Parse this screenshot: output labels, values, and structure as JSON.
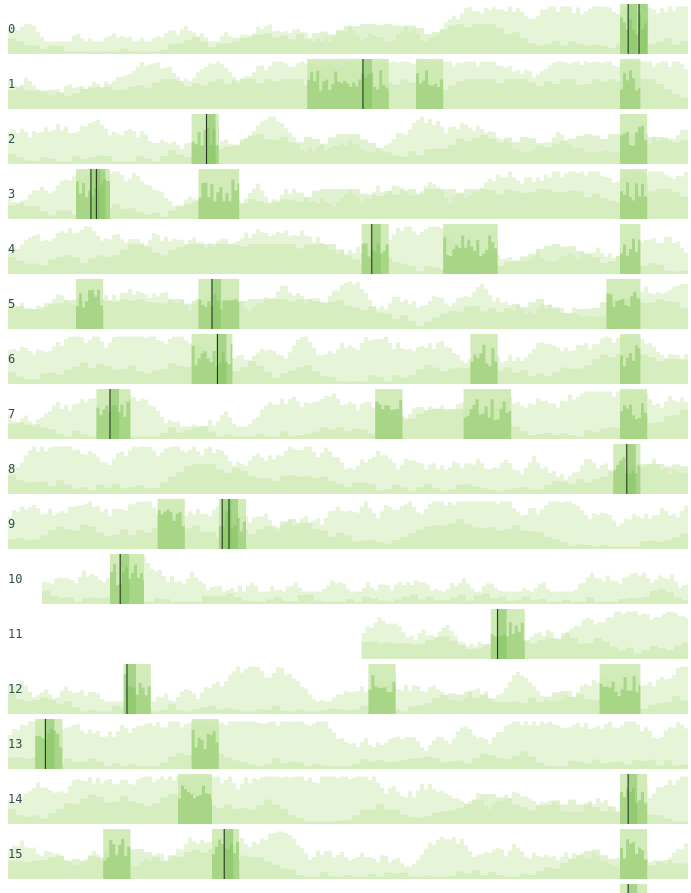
{
  "chart_data": {
    "type": "area",
    "title": "",
    "xlabel": "",
    "ylabel": "",
    "grid": false,
    "colors": {
      "band_base": "#e6f4d7",
      "band_mid": "#c9e7ad",
      "band_strong": "#9fd17c",
      "band_stronger": "#7cc05a",
      "marker": "#1f2f1f",
      "label": "#2f4f4f"
    },
    "rows": [
      {
        "label": "0",
        "start": 0.0,
        "end": 1.0,
        "marker": [
          0.912,
          0.928
        ],
        "highlights": [
          [
            0.9,
            0.94
          ]
        ]
      },
      {
        "label": "1",
        "start": 0.0,
        "end": 1.0,
        "marker": [
          0.522
        ],
        "highlights": [
          [
            0.44,
            0.56
          ],
          [
            0.6,
            0.64
          ],
          [
            0.9,
            0.93
          ]
        ]
      },
      {
        "label": "2",
        "start": 0.0,
        "end": 1.0,
        "marker": [
          0.292
        ],
        "highlights": [
          [
            0.27,
            0.31
          ],
          [
            0.9,
            0.94
          ]
        ]
      },
      {
        "label": "3",
        "start": 0.0,
        "end": 1.0,
        "marker": [
          0.122,
          0.13
        ],
        "highlights": [
          [
            0.1,
            0.15
          ],
          [
            0.28,
            0.34
          ],
          [
            0.9,
            0.94
          ]
        ]
      },
      {
        "label": "4",
        "start": 0.0,
        "end": 1.0,
        "marker": [
          0.535
        ],
        "highlights": [
          [
            0.52,
            0.56
          ],
          [
            0.64,
            0.72
          ],
          [
            0.9,
            0.93
          ]
        ]
      },
      {
        "label": "5",
        "start": 0.0,
        "end": 1.0,
        "marker": [
          0.3
        ],
        "highlights": [
          [
            0.1,
            0.14
          ],
          [
            0.28,
            0.34
          ],
          [
            0.88,
            0.93
          ]
        ]
      },
      {
        "label": "6",
        "start": 0.0,
        "end": 1.0,
        "marker": [
          0.308
        ],
        "highlights": [
          [
            0.27,
            0.33
          ],
          [
            0.68,
            0.72
          ],
          [
            0.9,
            0.93
          ]
        ]
      },
      {
        "label": "7",
        "start": 0.0,
        "end": 1.0,
        "marker": [
          0.15
        ],
        "highlights": [
          [
            0.13,
            0.18
          ],
          [
            0.54,
            0.58
          ],
          [
            0.67,
            0.74
          ],
          [
            0.9,
            0.94
          ]
        ]
      },
      {
        "label": "8",
        "start": 0.0,
        "end": 1.0,
        "marker": [
          0.91
        ],
        "highlights": [
          [
            0.89,
            0.93
          ]
        ]
      },
      {
        "label": "9",
        "start": 0.0,
        "end": 1.0,
        "marker": [
          0.315,
          0.325
        ],
        "highlights": [
          [
            0.22,
            0.26
          ],
          [
            0.31,
            0.35
          ]
        ]
      },
      {
        "label": "10",
        "start": 0.05,
        "end": 1.0,
        "marker": [
          0.165
        ],
        "highlights": [
          [
            0.15,
            0.2
          ]
        ]
      },
      {
        "label": "11",
        "start": 0.52,
        "end": 1.0,
        "marker": [
          0.72
        ],
        "highlights": [
          [
            0.71,
            0.76
          ]
        ]
      },
      {
        "label": "12",
        "start": 0.0,
        "end": 1.0,
        "marker": [
          0.175
        ],
        "highlights": [
          [
            0.17,
            0.21
          ],
          [
            0.53,
            0.57
          ],
          [
            0.87,
            0.93
          ]
        ]
      },
      {
        "label": "13",
        "start": 0.0,
        "end": 1.0,
        "marker": [
          0.055
        ],
        "highlights": [
          [
            0.04,
            0.08
          ],
          [
            0.27,
            0.31
          ]
        ]
      },
      {
        "label": "14",
        "start": 0.0,
        "end": 1.0,
        "marker": [
          0.912
        ],
        "highlights": [
          [
            0.25,
            0.3
          ],
          [
            0.9,
            0.94
          ]
        ]
      },
      {
        "label": "15",
        "start": 0.0,
        "end": 1.0,
        "marker": [
          0.318
        ],
        "highlights": [
          [
            0.14,
            0.18
          ],
          [
            0.3,
            0.34
          ],
          [
            0.9,
            0.94
          ]
        ]
      },
      {
        "label": "",
        "start": 0.64,
        "end": 1.0,
        "marker": [
          0.912
        ],
        "highlights": [
          [
            0.9,
            0.94
          ]
        ]
      }
    ]
  }
}
